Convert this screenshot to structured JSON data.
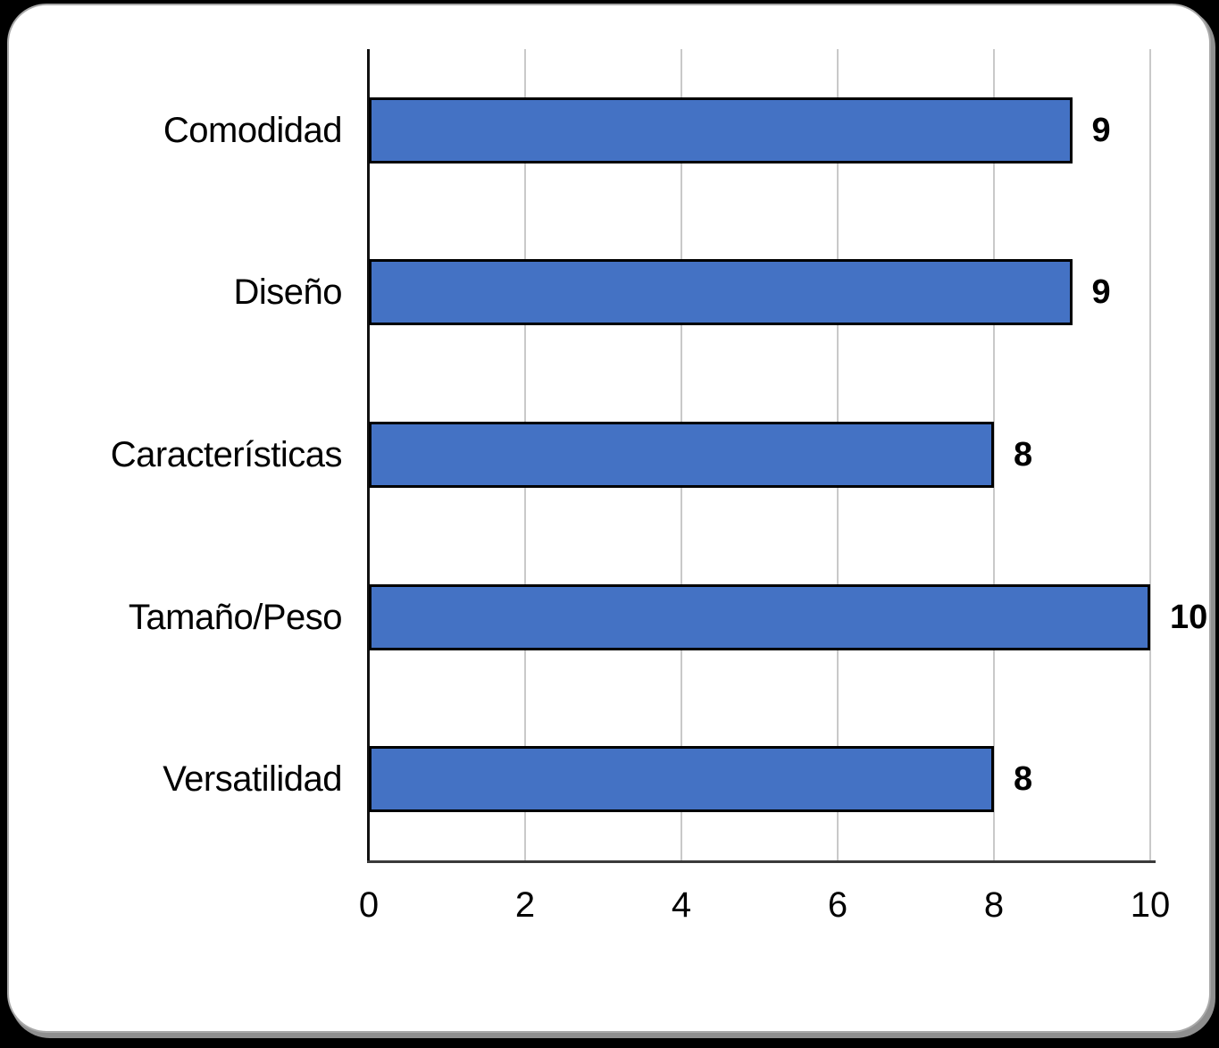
{
  "frame": {
    "outer_background": "#000000",
    "card_background": "#ffffff",
    "card_edge_color": "#a9a9a9"
  },
  "chart_data": {
    "type": "bar",
    "orientation": "horizontal",
    "title": "",
    "xlabel": "",
    "ylabel": "",
    "categories": [
      "Comodidad",
      "Diseño",
      "Características",
      "Tamaño/Peso",
      "Versatilidad"
    ],
    "values": [
      9,
      9,
      8,
      10,
      8
    ],
    "data_labels": [
      "9",
      "9",
      "8",
      "10",
      "8"
    ],
    "xlim": [
      0,
      10
    ],
    "x_ticks": [
      "0",
      "2",
      "4",
      "6",
      "8",
      "10"
    ],
    "grid": "vertical-on",
    "legend": "none",
    "bar_color": "#4472C4",
    "bar_border_color": "#000000",
    "gridline_color": "#C9C9C9",
    "axis_line_color": "#262626",
    "text_color": "#000000"
  }
}
